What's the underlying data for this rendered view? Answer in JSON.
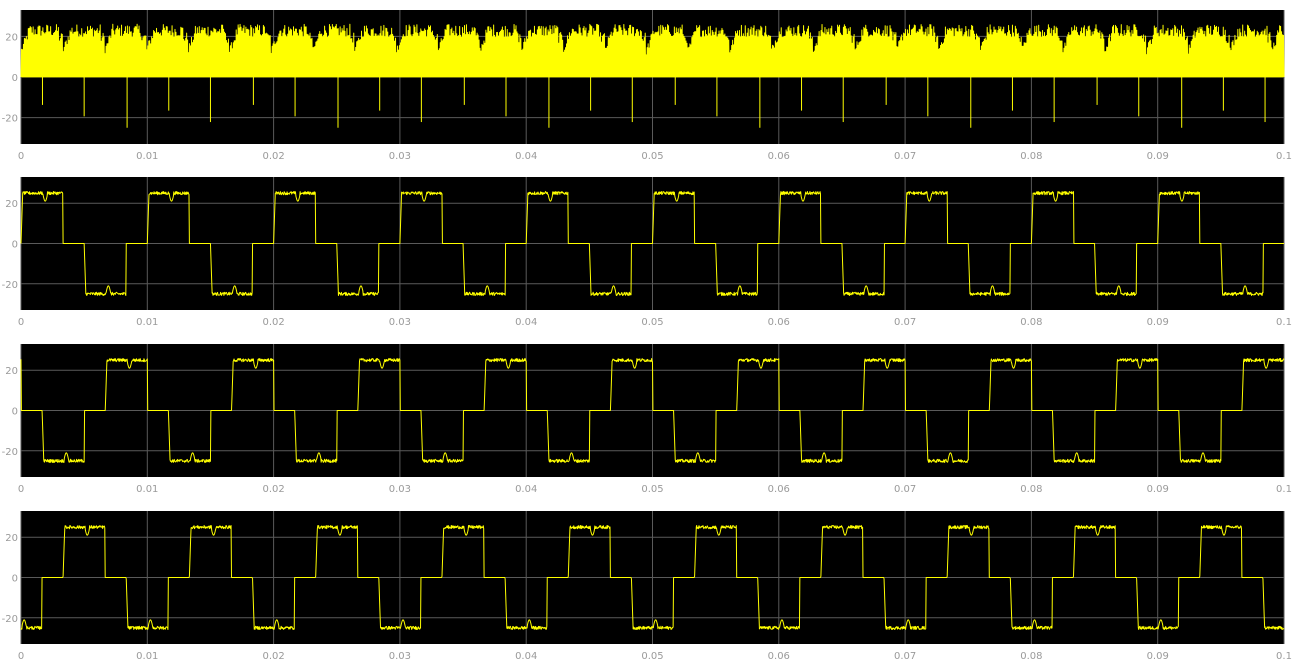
{
  "background": "#ffffff",
  "axes_background": "#000000",
  "grid_color": "#5a5a5a",
  "tick_color": "#9a9a9a",
  "trace_color": "#ffff00",
  "chart_data": [
    {
      "type": "line",
      "title": "",
      "xlabel": "",
      "ylabel": "",
      "grid": true,
      "xlim": [
        0,
        0.1
      ],
      "ylim": [
        -33,
        33
      ],
      "xticks": [
        "0",
        "0.01",
        "0.02",
        "0.03",
        "0.04",
        "0.05",
        "0.06",
        "0.07",
        "0.08",
        "0.09",
        "0.1"
      ],
      "yticks": [
        "20",
        "0",
        "-20"
      ],
      "series": [
        {
          "shape": "pwm-positive",
          "min": -25,
          "max": 26,
          "switching_period": 0.0033,
          "dip_depth": -25,
          "dip_times": [
            0.0017,
            0.005,
            0.0084,
            0.0117,
            0.015,
            0.0184,
            0.0217,
            0.0251,
            0.0284,
            0.0317,
            0.0351,
            0.0384,
            0.0418,
            0.0451,
            0.0484,
            0.0518,
            0.0551,
            0.0585,
            0.0618,
            0.0651,
            0.0685,
            0.0718,
            0.0752,
            0.0785,
            0.0818,
            0.0852,
            0.0885,
            0.0919,
            0.0952,
            0.0985
          ]
        }
      ]
    },
    {
      "type": "line",
      "title": "",
      "xlabel": "",
      "ylabel": "",
      "grid": true,
      "xlim": [
        0,
        0.1
      ],
      "ylim": [
        -33,
        33
      ],
      "xticks": [
        "0",
        "0.01",
        "0.02",
        "0.03",
        "0.04",
        "0.05",
        "0.06",
        "0.07",
        "0.08",
        "0.09",
        "0.1"
      ],
      "yticks": [
        "20",
        "0",
        "-20"
      ],
      "series": [
        {
          "shape": "six-step-phase",
          "period": 0.01,
          "phase_offset": 0.0,
          "amplitude": 25,
          "plateau": 22
        }
      ]
    },
    {
      "type": "line",
      "title": "",
      "xlabel": "",
      "ylabel": "",
      "grid": true,
      "xlim": [
        0,
        0.1
      ],
      "ylim": [
        -33,
        33
      ],
      "xticks": [
        "0",
        "0.01",
        "0.02",
        "0.03",
        "0.04",
        "0.05",
        "0.06",
        "0.07",
        "0.08",
        "0.09",
        "0.1"
      ],
      "yticks": [
        "20",
        "0",
        "-20"
      ],
      "series": [
        {
          "shape": "six-step-phase",
          "period": 0.01,
          "phase_offset": 0.00667,
          "amplitude": 25,
          "plateau": 22
        }
      ]
    },
    {
      "type": "line",
      "title": "",
      "xlabel": "",
      "ylabel": "",
      "grid": true,
      "xlim": [
        0,
        0.1
      ],
      "ylim": [
        -33,
        33
      ],
      "xticks": [
        "0",
        "0.01",
        "0.02",
        "0.03",
        "0.04",
        "0.05",
        "0.06",
        "0.07",
        "0.08",
        "0.09",
        "0.1"
      ],
      "yticks": [
        "20",
        "0",
        "-20"
      ],
      "series": [
        {
          "shape": "six-step-phase",
          "period": 0.01,
          "phase_offset": 0.00333,
          "amplitude": 25,
          "plateau": 22
        }
      ]
    }
  ]
}
